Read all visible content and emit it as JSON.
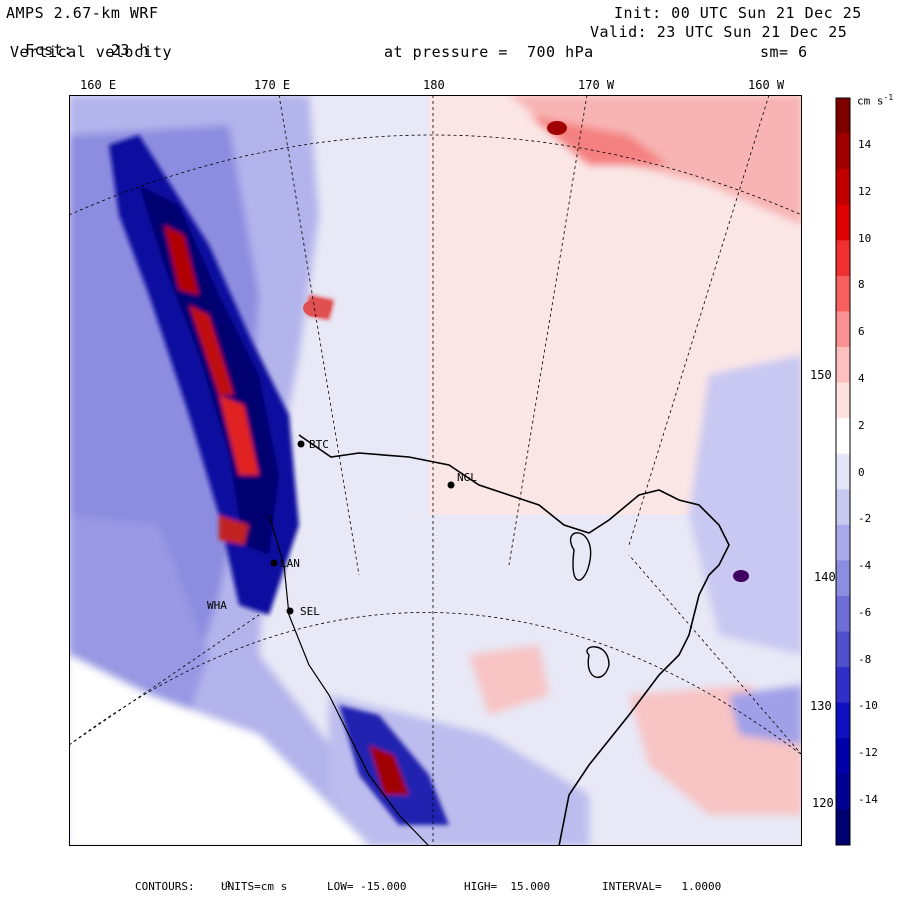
{
  "header": {
    "model": "AMPS 2.67-km WRF",
    "fcst_label": "Fcst:",
    "fcst_value": "23 h",
    "field": "Vertical velocity",
    "init": "Init: 00 UTC Sun 21 Dec 25",
    "valid": "Valid: 23 UTC Sun 21 Dec 25",
    "pressure": "at pressure =  700 hPa",
    "smoothing": "sm= 6"
  },
  "longitude_labels": [
    "160 E",
    "170 E",
    "180",
    "170 W",
    "160 W"
  ],
  "lon_right_labels": [
    "150 W",
    "140 W",
    "130 W",
    "120 W"
  ],
  "stations": [
    "BTC",
    "NGL",
    "LAN",
    "SEL",
    "WHA"
  ],
  "colorbar": {
    "units": "cm s",
    "units_exp": "-1",
    "labels": [
      "14",
      "12",
      "10",
      "8",
      "6",
      "4",
      "2",
      "0",
      "-2",
      "-4",
      "-6",
      "-8",
      "-10",
      "-12",
      "-14"
    ],
    "colors": [
      "#800000",
      "#a00000",
      "#c00000",
      "#e00000",
      "#f03030",
      "#f86060",
      "#fa9090",
      "#fcc0c0",
      "#fde0e0",
      "#ffffff",
      "#e6e6f8",
      "#c8c8f2",
      "#aaaaea",
      "#8c8ce0",
      "#6e6ed6",
      "#5050cc",
      "#3030c8",
      "#1010c0",
      "#0000a8",
      "#000090",
      "#000070"
    ]
  },
  "footer": {
    "contours_label": "CONTOURS:",
    "units": "UNITS=cm s",
    "units_exp": "-1",
    "low": "LOW= -15.000",
    "high": "HIGH=  15.000",
    "interval": "INTERVAL=   1.0000"
  },
  "colors": {
    "background": "#ffffff",
    "frame": "#000000"
  }
}
